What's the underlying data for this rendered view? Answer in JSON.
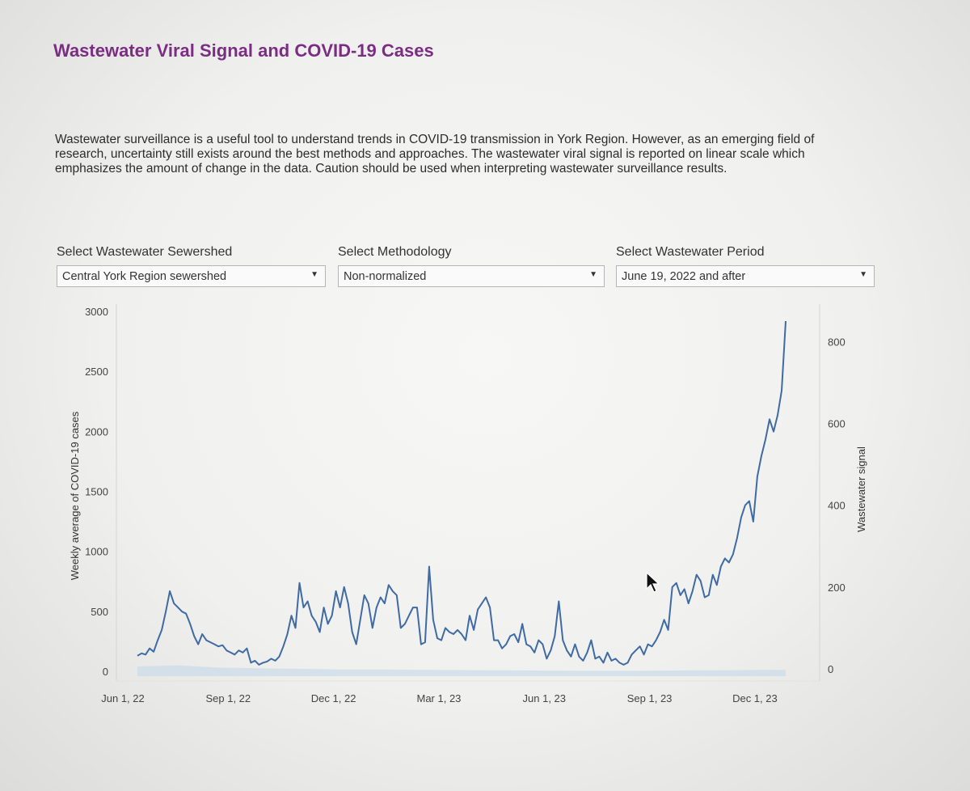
{
  "page": {
    "title": "Wastewater Viral Signal and COVID-19 Cases",
    "description": "Wastewater surveillance is a useful tool to understand trends in COVID-19 transmission in York Region. However, as an emerging field of research, uncertainty still exists around the best methods and approaches. The wastewater viral signal is reported on linear scale which emphasizes the amount of change in the data. Caution should be used when interpreting wastewater surveillance results."
  },
  "filters": {
    "sewershed": {
      "label": "Select Wastewater Sewershed",
      "value": "Central York Region sewershed"
    },
    "methodology": {
      "label": "Select Methodology",
      "value": "Non-normalized"
    },
    "period": {
      "label": "Select Wastewater Period",
      "value": "June 19, 2022 and after"
    }
  },
  "icons": {
    "dropdown": "dropdown-arrow-icon",
    "cursor": "mouse-pointer-icon"
  },
  "colors": {
    "title": "#7b2d83",
    "signal_line": "#3f6aa3",
    "cases_area": "#c9dbea"
  },
  "chart_data": {
    "type": "line",
    "title": "",
    "xlabel": "",
    "ylabel_left": "Weekly average of COVID-19 cases",
    "ylabel_right": "Wastewater signal",
    "ylim_left": [
      0,
      3000
    ],
    "ylim_right": [
      0,
      850
    ],
    "yticks_left": [
      0,
      500,
      1000,
      1500,
      2000,
      2500,
      3000
    ],
    "yticks_right": [
      0,
      200,
      400,
      600,
      800
    ],
    "x_ticks": [
      "Jun 1, 22",
      "Sep 1, 22",
      "Dec 1, 22",
      "Mar 1, 23",
      "Jun 1, 23",
      "Sep 1, 23",
      "Dec 1, 23"
    ],
    "x_range_weeks": [
      -2,
      80
    ],
    "series": [
      {
        "name": "Wastewater signal",
        "axis": "right",
        "points": [
          [
            0,
            32
          ],
          [
            0.5,
            38
          ],
          [
            1,
            35
          ],
          [
            1.5,
            50
          ],
          [
            2,
            42
          ],
          [
            2.5,
            70
          ],
          [
            3,
            95
          ],
          [
            3.5,
            140
          ],
          [
            4,
            190
          ],
          [
            4.5,
            160
          ],
          [
            5,
            150
          ],
          [
            5.5,
            140
          ],
          [
            6,
            135
          ],
          [
            6.5,
            110
          ],
          [
            7,
            80
          ],
          [
            7.5,
            60
          ],
          [
            8,
            85
          ],
          [
            8.5,
            70
          ],
          [
            9,
            65
          ],
          [
            9.5,
            60
          ],
          [
            10,
            55
          ],
          [
            10.5,
            58
          ],
          [
            11,
            45
          ],
          [
            11.5,
            40
          ],
          [
            12,
            35
          ],
          [
            12.5,
            45
          ],
          [
            13,
            40
          ],
          [
            13.5,
            50
          ],
          [
            14,
            15
          ],
          [
            14.5,
            20
          ],
          [
            15,
            10
          ],
          [
            15.5,
            15
          ],
          [
            16,
            18
          ],
          [
            16.5,
            25
          ],
          [
            17,
            20
          ],
          [
            17.5,
            30
          ],
          [
            18,
            55
          ],
          [
            18.5,
            85
          ],
          [
            19,
            130
          ],
          [
            19.5,
            100
          ],
          [
            20,
            210
          ],
          [
            20.5,
            150
          ],
          [
            21,
            165
          ],
          [
            21.5,
            130
          ],
          [
            22,
            115
          ],
          [
            22.5,
            90
          ],
          [
            23,
            150
          ],
          [
            23.5,
            110
          ],
          [
            24,
            130
          ],
          [
            24.5,
            190
          ],
          [
            25,
            150
          ],
          [
            25.5,
            200
          ],
          [
            26,
            160
          ],
          [
            26.5,
            90
          ],
          [
            27,
            60
          ],
          [
            27.5,
            120
          ],
          [
            28,
            180
          ],
          [
            28.5,
            160
          ],
          [
            29,
            100
          ],
          [
            29.5,
            150
          ],
          [
            30,
            175
          ],
          [
            30.5,
            160
          ],
          [
            31,
            205
          ],
          [
            31.5,
            190
          ],
          [
            32,
            180
          ],
          [
            32.5,
            100
          ],
          [
            33,
            110
          ],
          [
            33.5,
            130
          ],
          [
            34,
            150
          ],
          [
            34.5,
            150
          ],
          [
            35,
            60
          ],
          [
            35.5,
            65
          ],
          [
            36,
            250
          ],
          [
            36.5,
            120
          ],
          [
            37,
            75
          ],
          [
            37.5,
            70
          ],
          [
            38,
            100
          ],
          [
            38.5,
            90
          ],
          [
            39,
            85
          ],
          [
            39.5,
            95
          ],
          [
            40,
            85
          ],
          [
            40.5,
            70
          ],
          [
            41,
            130
          ],
          [
            41.5,
            95
          ],
          [
            42,
            145
          ],
          [
            42.5,
            160
          ],
          [
            43,
            175
          ],
          [
            43.5,
            150
          ],
          [
            44,
            70
          ],
          [
            44.5,
            70
          ],
          [
            45,
            50
          ],
          [
            45.5,
            60
          ],
          [
            46,
            80
          ],
          [
            46.5,
            85
          ],
          [
            47,
            65
          ],
          [
            47.5,
            110
          ],
          [
            48,
            60
          ],
          [
            48.5,
            55
          ],
          [
            49,
            40
          ],
          [
            49.5,
            70
          ],
          [
            50,
            60
          ],
          [
            50.5,
            25
          ],
          [
            51,
            45
          ],
          [
            51.5,
            80
          ],
          [
            52,
            165
          ],
          [
            52.5,
            70
          ],
          [
            53,
            45
          ],
          [
            53.5,
            30
          ],
          [
            54,
            60
          ],
          [
            54.5,
            30
          ],
          [
            55,
            20
          ],
          [
            55.5,
            40
          ],
          [
            56,
            70
          ],
          [
            56.5,
            25
          ],
          [
            57,
            30
          ],
          [
            57.5,
            15
          ],
          [
            58,
            40
          ],
          [
            58.5,
            20
          ],
          [
            59,
            25
          ],
          [
            59.5,
            15
          ],
          [
            60,
            10
          ],
          [
            60.5,
            15
          ],
          [
            61,
            35
          ],
          [
            61.5,
            45
          ],
          [
            62,
            55
          ],
          [
            62.5,
            35
          ],
          [
            63,
            60
          ],
          [
            63.5,
            55
          ],
          [
            64,
            70
          ],
          [
            64.5,
            90
          ],
          [
            65,
            120
          ],
          [
            65.5,
            95
          ],
          [
            66,
            200
          ],
          [
            66.5,
            210
          ],
          [
            67,
            180
          ],
          [
            67.5,
            195
          ],
          [
            68,
            160
          ],
          [
            68.5,
            190
          ],
          [
            69,
            230
          ],
          [
            69.5,
            215
          ],
          [
            70,
            175
          ],
          [
            70.5,
            180
          ],
          [
            71,
            230
          ],
          [
            71.5,
            205
          ],
          [
            72,
            250
          ],
          [
            72.5,
            270
          ],
          [
            73,
            260
          ],
          [
            73.5,
            280
          ],
          [
            74,
            320
          ],
          [
            74.5,
            370
          ],
          [
            75,
            400
          ],
          [
            75.5,
            410
          ],
          [
            76,
            360
          ],
          [
            76.5,
            470
          ],
          [
            77,
            520
          ],
          [
            77.5,
            560
          ],
          [
            78,
            610
          ],
          [
            78.5,
            580
          ],
          [
            79,
            620
          ],
          [
            79.5,
            680
          ],
          [
            80,
            850
          ]
        ]
      },
      {
        "name": "Weekly average of COVID-19 cases",
        "axis": "left",
        "points": [
          [
            0,
            40
          ],
          [
            5,
            50
          ],
          [
            10,
            30
          ],
          [
            15,
            25
          ],
          [
            20,
            20
          ],
          [
            25,
            15
          ],
          [
            30,
            15
          ],
          [
            35,
            12
          ],
          [
            40,
            10
          ],
          [
            45,
            8
          ],
          [
            50,
            6
          ],
          [
            55,
            5
          ],
          [
            60,
            4
          ],
          [
            65,
            6
          ],
          [
            70,
            8
          ],
          [
            75,
            10
          ],
          [
            80,
            12
          ]
        ]
      }
    ]
  }
}
